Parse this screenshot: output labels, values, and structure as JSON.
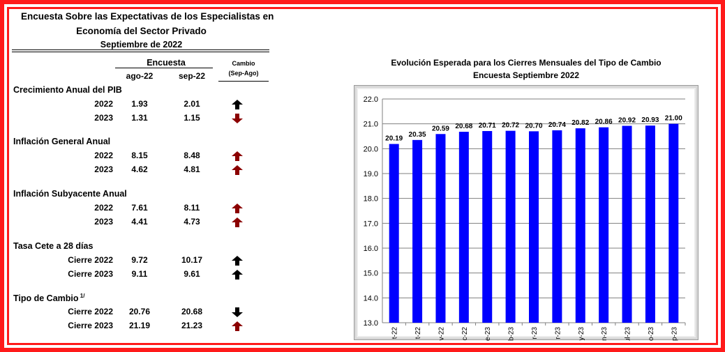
{
  "survey": {
    "title_line1": "Encuesta Sobre las Expectativas de los Especialistas en",
    "title_line2": "Economía del Sector Privado",
    "title_line3": "Septiembre de 2022",
    "header_group": "Encuesta",
    "col1": "ago-22",
    "col2": "sep-22",
    "change_label_1": "Cambio",
    "change_label_2": "(Sep-Ago)",
    "colors": {
      "up_dark": "#8b0000",
      "black": "#000000"
    },
    "sections": [
      {
        "title": "Crecimiento Anual del PIB",
        "superscript": "",
        "rows": [
          {
            "label": "2022",
            "ago": "1.93",
            "sep": "2.01",
            "arrow": "up",
            "arrow_color": "black"
          },
          {
            "label": "2023",
            "ago": "1.31",
            "sep": "1.15",
            "arrow": "down",
            "arrow_color": "dark-red"
          }
        ]
      },
      {
        "title": "Inflación General Anual",
        "superscript": "",
        "rows": [
          {
            "label": "2022",
            "ago": "8.15",
            "sep": "8.48",
            "arrow": "up",
            "arrow_color": "dark-red"
          },
          {
            "label": "2023",
            "ago": "4.62",
            "sep": "4.81",
            "arrow": "up",
            "arrow_color": "dark-red"
          }
        ]
      },
      {
        "title": "Inflación Subyacente Anual",
        "superscript": "",
        "rows": [
          {
            "label": "2022",
            "ago": "7.61",
            "sep": "8.11",
            "arrow": "up",
            "arrow_color": "dark-red"
          },
          {
            "label": "2023",
            "ago": "4.41",
            "sep": "4.73",
            "arrow": "up",
            "arrow_color": "dark-red"
          }
        ]
      },
      {
        "title": "Tasa Cete a 28 días",
        "superscript": "",
        "rows": [
          {
            "label": "Cierre 2022",
            "ago": "9.72",
            "sep": "10.17",
            "arrow": "up",
            "arrow_color": "black"
          },
          {
            "label": "Cierre 2023",
            "ago": "9.11",
            "sep": "9.61",
            "arrow": "up",
            "arrow_color": "black"
          }
        ]
      },
      {
        "title": "Tipo de Cambio",
        "superscript": "1/",
        "rows": [
          {
            "label": "Cierre 2022",
            "ago": "20.76",
            "sep": "20.68",
            "arrow": "down",
            "arrow_color": "black"
          },
          {
            "label": "Cierre 2023",
            "ago": "21.19",
            "sep": "21.23",
            "arrow": "up",
            "arrow_color": "dark-red"
          }
        ]
      }
    ]
  },
  "chart_data": {
    "type": "bar",
    "title": "Evolución Esperada para los Cierres Mensuales del Tipo de Cambio",
    "subtitle": "Encuesta Septiembre 2022",
    "categories": [
      "t-22",
      "t-22",
      "v-22",
      "c-22",
      "e-23",
      "b-23",
      "r-23",
      "r-23",
      "y-23",
      "n-23",
      "ul-23",
      "o-23",
      "p-23"
    ],
    "values": [
      20.19,
      20.35,
      20.59,
      20.68,
      20.71,
      20.72,
      20.7,
      20.74,
      20.82,
      20.86,
      20.92,
      20.93,
      21.0
    ],
    "value_labels": [
      "20.19",
      "20.35",
      "20.59",
      "20.68",
      "20.71",
      "20.72",
      "20.70",
      "20.74",
      "20.82",
      "20.86",
      "20.92",
      "20.93",
      "21.00"
    ],
    "ylim": [
      13.0,
      22.0
    ],
    "yticks": [
      "13.0",
      "14.0",
      "15.0",
      "16.0",
      "17.0",
      "18.0",
      "19.0",
      "20.0",
      "21.0",
      "22.0"
    ],
    "grid": true,
    "bar_color": "#0000ff",
    "legend": "none"
  }
}
